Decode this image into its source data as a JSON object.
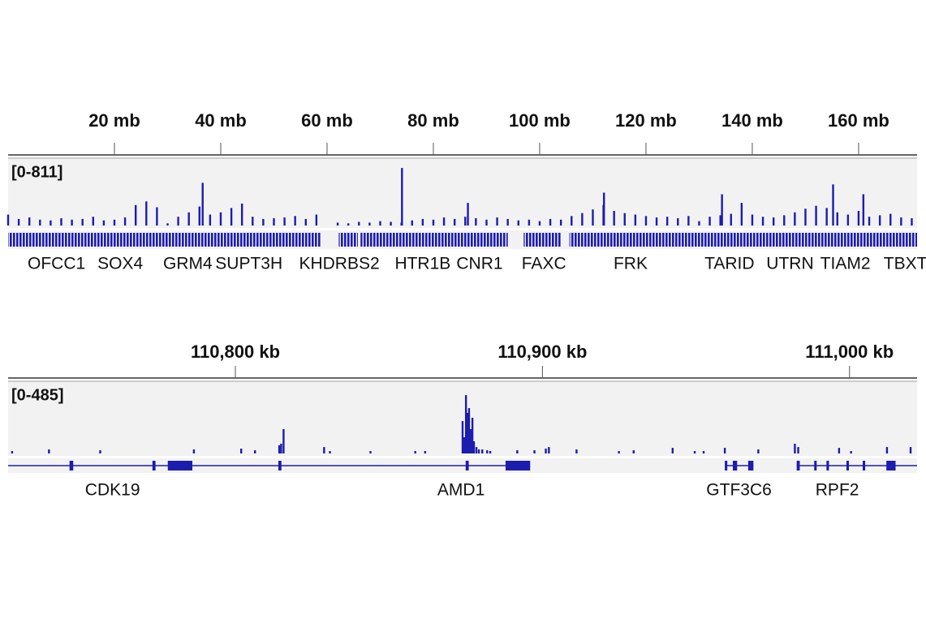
{
  "chart_data": [
    {
      "type": "bar",
      "range_label": "[0-811]",
      "color": "#1c1cae",
      "xlim": [
        0,
        171
      ],
      "ylim": [
        0,
        811
      ],
      "xticks": [
        {
          "value": 20,
          "label": "20 mb"
        },
        {
          "value": 40,
          "label": "40 mb"
        },
        {
          "value": 60,
          "label": "60 mb"
        },
        {
          "value": 80,
          "label": "80 mb"
        },
        {
          "value": 100,
          "label": "100 mb"
        },
        {
          "value": 120,
          "label": "120 mb"
        },
        {
          "value": 140,
          "label": "140 mb"
        },
        {
          "value": 160,
          "label": "160 mb"
        }
      ],
      "x": [
        0,
        2,
        4,
        6,
        8,
        10,
        12,
        14,
        16,
        18,
        20,
        22,
        24,
        26,
        28,
        30,
        32,
        34,
        36,
        36.6,
        38,
        40,
        42,
        44,
        46,
        48,
        50,
        52,
        54,
        56,
        58,
        62,
        64,
        66,
        68,
        70,
        72,
        74,
        74.1,
        76,
        78,
        80,
        82,
        84,
        86,
        86.5,
        88,
        90,
        92,
        94,
        96,
        98,
        100,
        102,
        104,
        106,
        108,
        110,
        112,
        112.1,
        114,
        116,
        118,
        120,
        122,
        124,
        126,
        128,
        130,
        132,
        134,
        134.3,
        136,
        138,
        140,
        142,
        144,
        146,
        148,
        150,
        152,
        154,
        155.2,
        156,
        158,
        160,
        160.9,
        162,
        164,
        166,
        168,
        170
      ],
      "values": [
        150,
        90,
        110,
        80,
        70,
        100,
        80,
        90,
        120,
        70,
        80,
        110,
        280,
        330,
        250,
        30,
        120,
        180,
        260,
        585,
        150,
        180,
        240,
        300,
        120,
        90,
        100,
        110,
        130,
        90,
        150,
        40,
        30,
        50,
        40,
        60,
        50,
        40,
        788,
        70,
        90,
        80,
        110,
        90,
        120,
        310,
        100,
        80,
        110,
        90,
        70,
        80,
        60,
        90,
        80,
        130,
        170,
        220,
        280,
        450,
        200,
        170,
        150,
        130,
        110,
        120,
        100,
        130,
        60,
        120,
        140,
        428,
        160,
        310,
        150,
        120,
        110,
        140,
        180,
        230,
        270,
        240,
        563,
        180,
        150,
        200,
        428,
        120,
        140,
        160,
        110,
        100
      ],
      "gene_blocks": [
        {
          "start": 0,
          "end": 58.8
        },
        {
          "start": 62.2,
          "end": 65.8
        },
        {
          "start": 66.3,
          "end": 94
        },
        {
          "start": 97,
          "end": 104
        },
        {
          "start": 105.6,
          "end": 171
        }
      ],
      "genes": [
        {
          "label": "OFCC1",
          "x": 9.1
        },
        {
          "label": "SOX4",
          "x": 21.1
        },
        {
          "label": "GRM4",
          "x": 33.8
        },
        {
          "label": "SUPT3H",
          "x": 45.3
        },
        {
          "label": "KHDRBS2",
          "x": 62.3
        },
        {
          "label": "HTR1B",
          "x": 78.0
        },
        {
          "label": "CNR1",
          "x": 88.7
        },
        {
          "label": "FAXC",
          "x": 100.8
        },
        {
          "label": "FRK",
          "x": 117.1
        },
        {
          "label": "TARID",
          "x": 135.7
        },
        {
          "label": "UTRN",
          "x": 147.1
        },
        {
          "label": "TIAM2",
          "x": 157.5
        },
        {
          "label": "TBXT",
          "x": 168.8
        }
      ]
    },
    {
      "type": "bar",
      "range_label": "[0-485]",
      "color": "#1c1cae",
      "xlim": [
        110726,
        111022
      ],
      "ylim": [
        0,
        485
      ],
      "xticks": [
        {
          "value": 110800,
          "label": "110,800 kb"
        },
        {
          "value": 110900,
          "label": "110,900 kb"
        },
        {
          "value": 111000,
          "label": "111,000 kb"
        }
      ],
      "x": [
        110727.3,
        110739.3,
        110756.0,
        110786.5,
        110801.9,
        110806.4,
        110814.3,
        110814.9,
        110815.7,
        110828.9,
        110830.8,
        110844.0,
        110858.6,
        110861.8,
        110874.0,
        110874.5,
        110875.1,
        110875.6,
        110876.1,
        110876.7,
        110877.2,
        110877.7,
        110878.5,
        110879.3,
        110880.4,
        110882.0,
        110883.0,
        110891.8,
        110897.4,
        110901.1,
        110902.1,
        110911.1,
        110924.9,
        110929.7,
        110942.4,
        110949.6,
        110952.5,
        110959.4,
        110970.3,
        110982.2,
        110983.3,
        110996.6,
        111000.5,
        111012.2,
        111019.9
      ],
      "values": [
        18,
        30,
        24,
        30,
        36,
        24,
        61,
        73,
        182,
        48,
        18,
        18,
        18,
        18,
        242,
        121,
        436,
        303,
        339,
        182,
        267,
        91,
        48,
        30,
        30,
        24,
        18,
        24,
        24,
        36,
        48,
        30,
        18,
        24,
        42,
        18,
        18,
        42,
        30,
        73,
        48,
        42,
        18,
        48,
        48
      ],
      "gene_blocks": [
        {
          "start": 110726,
          "end": 110896
        },
        {
          "start": 110959.4,
          "end": 110968.7
        },
        {
          "start": 110982.8,
          "end": 111022
        }
      ],
      "exons": [
        {
          "start": 110746,
          "end": 110747.2
        },
        {
          "start": 110773,
          "end": 110774
        },
        {
          "start": 110778,
          "end": 110786
        },
        {
          "start": 110814,
          "end": 110815
        },
        {
          "start": 110875,
          "end": 110876
        },
        {
          "start": 110888,
          "end": 110896
        },
        {
          "start": 110959.4,
          "end": 110960.2
        },
        {
          "start": 110962,
          "end": 110963.4
        },
        {
          "start": 110967,
          "end": 110968.7
        },
        {
          "start": 110982.8,
          "end": 110983.8
        },
        {
          "start": 110988.5,
          "end": 110989.3
        },
        {
          "start": 110992.5,
          "end": 110993.3
        },
        {
          "start": 110999,
          "end": 110999.8
        },
        {
          "start": 111004.3,
          "end": 111005.1
        },
        {
          "start": 111012,
          "end": 111015
        }
      ],
      "genes": [
        {
          "label": "CDK19",
          "x": 110760
        },
        {
          "label": "AMD1",
          "x": 110873.5
        },
        {
          "label": "GTF3C6",
          "x": 110964
        },
        {
          "label": "RPF2",
          "x": 110996
        }
      ]
    }
  ]
}
